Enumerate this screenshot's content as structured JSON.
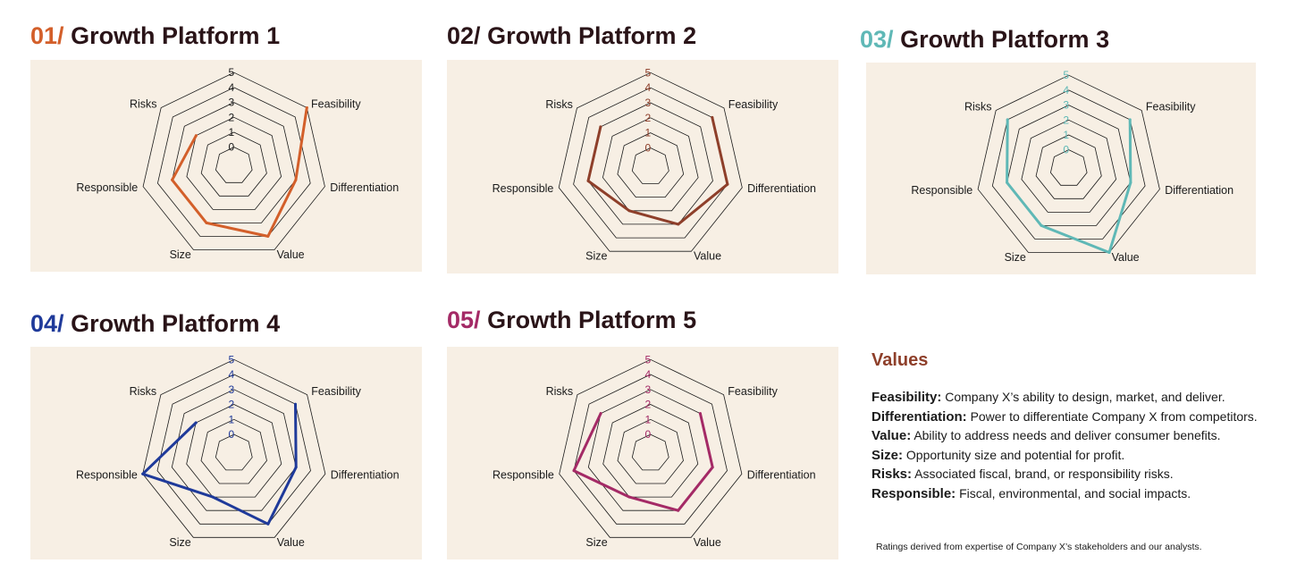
{
  "chart_data": [
    {
      "type": "radar",
      "number": "01/",
      "title": "Growth Platform 1",
      "color": "#d35f2a",
      "axes": [
        "Risks",
        "Feasibility",
        "Differentiation",
        "Value",
        "Size",
        "Responsible"
      ],
      "ticks": [
        "0",
        "1",
        "2",
        "3",
        "4",
        "5"
      ],
      "range": [
        0,
        5
      ],
      "values": [
        2,
        5,
        3,
        4,
        3,
        3
      ]
    },
    {
      "type": "radar",
      "number": "02/",
      "title": "Growth Platform 2",
      "color": "#8e3f2a",
      "axes": [
        "Risks",
        "Feasibility",
        "Differentiation",
        "Value",
        "Size",
        "Responsible"
      ],
      "ticks": [
        "0",
        "1",
        "2",
        "3",
        "4",
        "5"
      ],
      "range": [
        0,
        5
      ],
      "values": [
        3,
        4,
        4,
        3,
        2,
        3
      ]
    },
    {
      "type": "radar",
      "number": "03/",
      "title": "Growth Platform 3",
      "color": "#5fb8b6",
      "axes": [
        "Risks",
        "Feasibility",
        "Differentiation",
        "Value",
        "Size",
        "Responsible"
      ],
      "ticks": [
        "0",
        "1",
        "2",
        "3",
        "4",
        "5"
      ],
      "range": [
        0,
        5
      ],
      "values": [
        4,
        4,
        3,
        5,
        3,
        3
      ]
    },
    {
      "type": "radar",
      "number": "04/",
      "title": "Growth Platform 4",
      "color": "#1f3a9a",
      "axes": [
        "Risks",
        "Feasibility",
        "Differentiation",
        "Value",
        "Size",
        "Responsible"
      ],
      "ticks": [
        "0",
        "1",
        "2",
        "3",
        "4",
        "5"
      ],
      "range": [
        0,
        5
      ],
      "values": [
        2,
        4,
        3,
        4,
        2,
        5
      ]
    },
    {
      "type": "radar",
      "number": "05/",
      "title": "Growth Platform 5",
      "color": "#a42a66",
      "axes": [
        "Risks",
        "Feasibility",
        "Differentiation",
        "Value",
        "Size",
        "Responsible"
      ],
      "ticks": [
        "0",
        "1",
        "2",
        "3",
        "4",
        "5"
      ],
      "range": [
        0,
        5
      ],
      "values": [
        3,
        3,
        3,
        3,
        2,
        4
      ]
    }
  ],
  "legend": {
    "title": "Values",
    "items": [
      {
        "term": "Feasibility:",
        "desc": "Company X’s ability to design, market, and deliver."
      },
      {
        "term": "Differentiation:",
        "desc": "Power to differentiate Company X from competitors."
      },
      {
        "term": "Value:",
        "desc": "Ability to address needs and deliver consumer benefits."
      },
      {
        "term": "Size:",
        "desc": "Opportunity size and potential for profit."
      },
      {
        "term": "Risks:",
        "desc": "Associated fiscal, brand, or responsibility risks."
      },
      {
        "term": "Responsible:",
        "desc": "Fiscal, environmental, and social impacts."
      }
    ],
    "note": "Ratings derived from expertise of Company X’s stakeholders and our analysts."
  }
}
